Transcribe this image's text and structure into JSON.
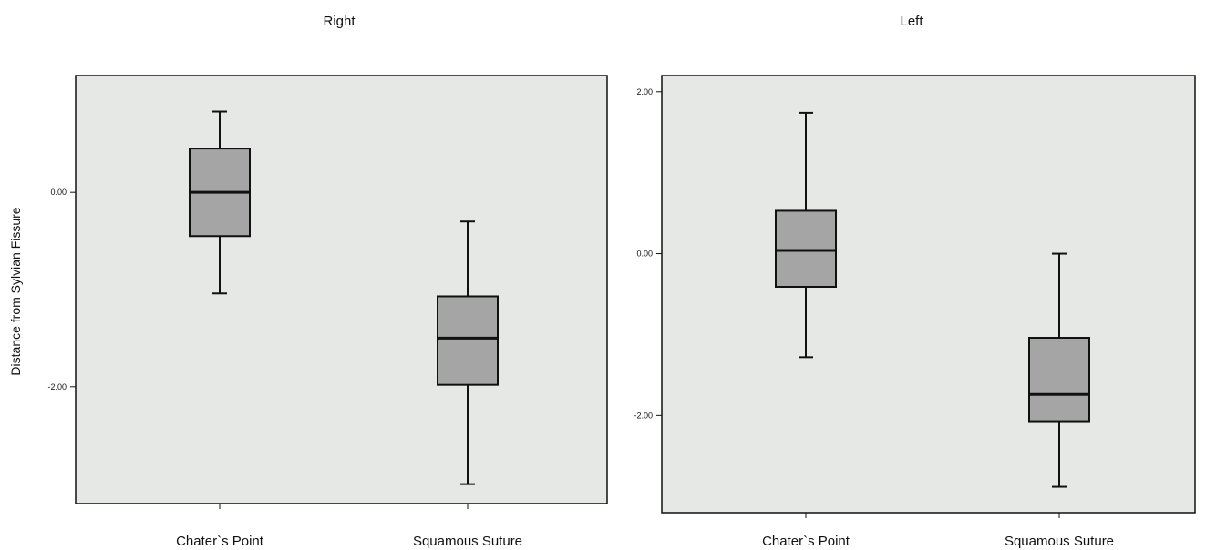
{
  "chart_data": [
    {
      "type": "box",
      "title": "Right",
      "ylabel": "Distance from Sylvian Fissure",
      "xlabel": "",
      "ylim": [
        -3.2,
        1.2
      ],
      "yticks": [
        {
          "value": 0.0,
          "label": "0.00"
        },
        {
          "value": -2.0,
          "label": "-2.00"
        }
      ],
      "categories": [
        "Chater`s Point",
        "Squamous Suture"
      ],
      "boxes": [
        {
          "category": "Chater`s Point",
          "min": -1.04,
          "q1": -0.45,
          "median": 0.0,
          "q3": 0.45,
          "max": 0.83
        },
        {
          "category": "Squamous Suture",
          "min": -3.0,
          "q1": -1.98,
          "median": -1.5,
          "q3": -1.07,
          "max": -0.3
        }
      ],
      "grid": false,
      "colors": {
        "plot_bg": "#e6e8e6",
        "box_fill": "#a5a5a5",
        "stroke": "#111111"
      }
    },
    {
      "type": "box",
      "title": "Left",
      "ylabel": "",
      "xlabel": "",
      "ylim": [
        -3.2,
        2.2
      ],
      "yticks": [
        {
          "value": 2.0,
          "label": "2.00"
        },
        {
          "value": 0.0,
          "label": "0.00"
        },
        {
          "value": -2.0,
          "label": "-2.00"
        }
      ],
      "categories": [
        "Chater`s Point",
        "Squamous Suture"
      ],
      "boxes": [
        {
          "category": "Chater`s Point",
          "min": -1.28,
          "q1": -0.41,
          "median": 0.04,
          "q3": 0.53,
          "max": 1.74
        },
        {
          "category": "Squamous Suture",
          "min": -2.88,
          "q1": -2.07,
          "median": -1.74,
          "q3": -1.04,
          "max": 0.0
        }
      ],
      "grid": false,
      "colors": {
        "plot_bg": "#e6e8e6",
        "box_fill": "#a5a5a5",
        "stroke": "#111111"
      }
    }
  ]
}
